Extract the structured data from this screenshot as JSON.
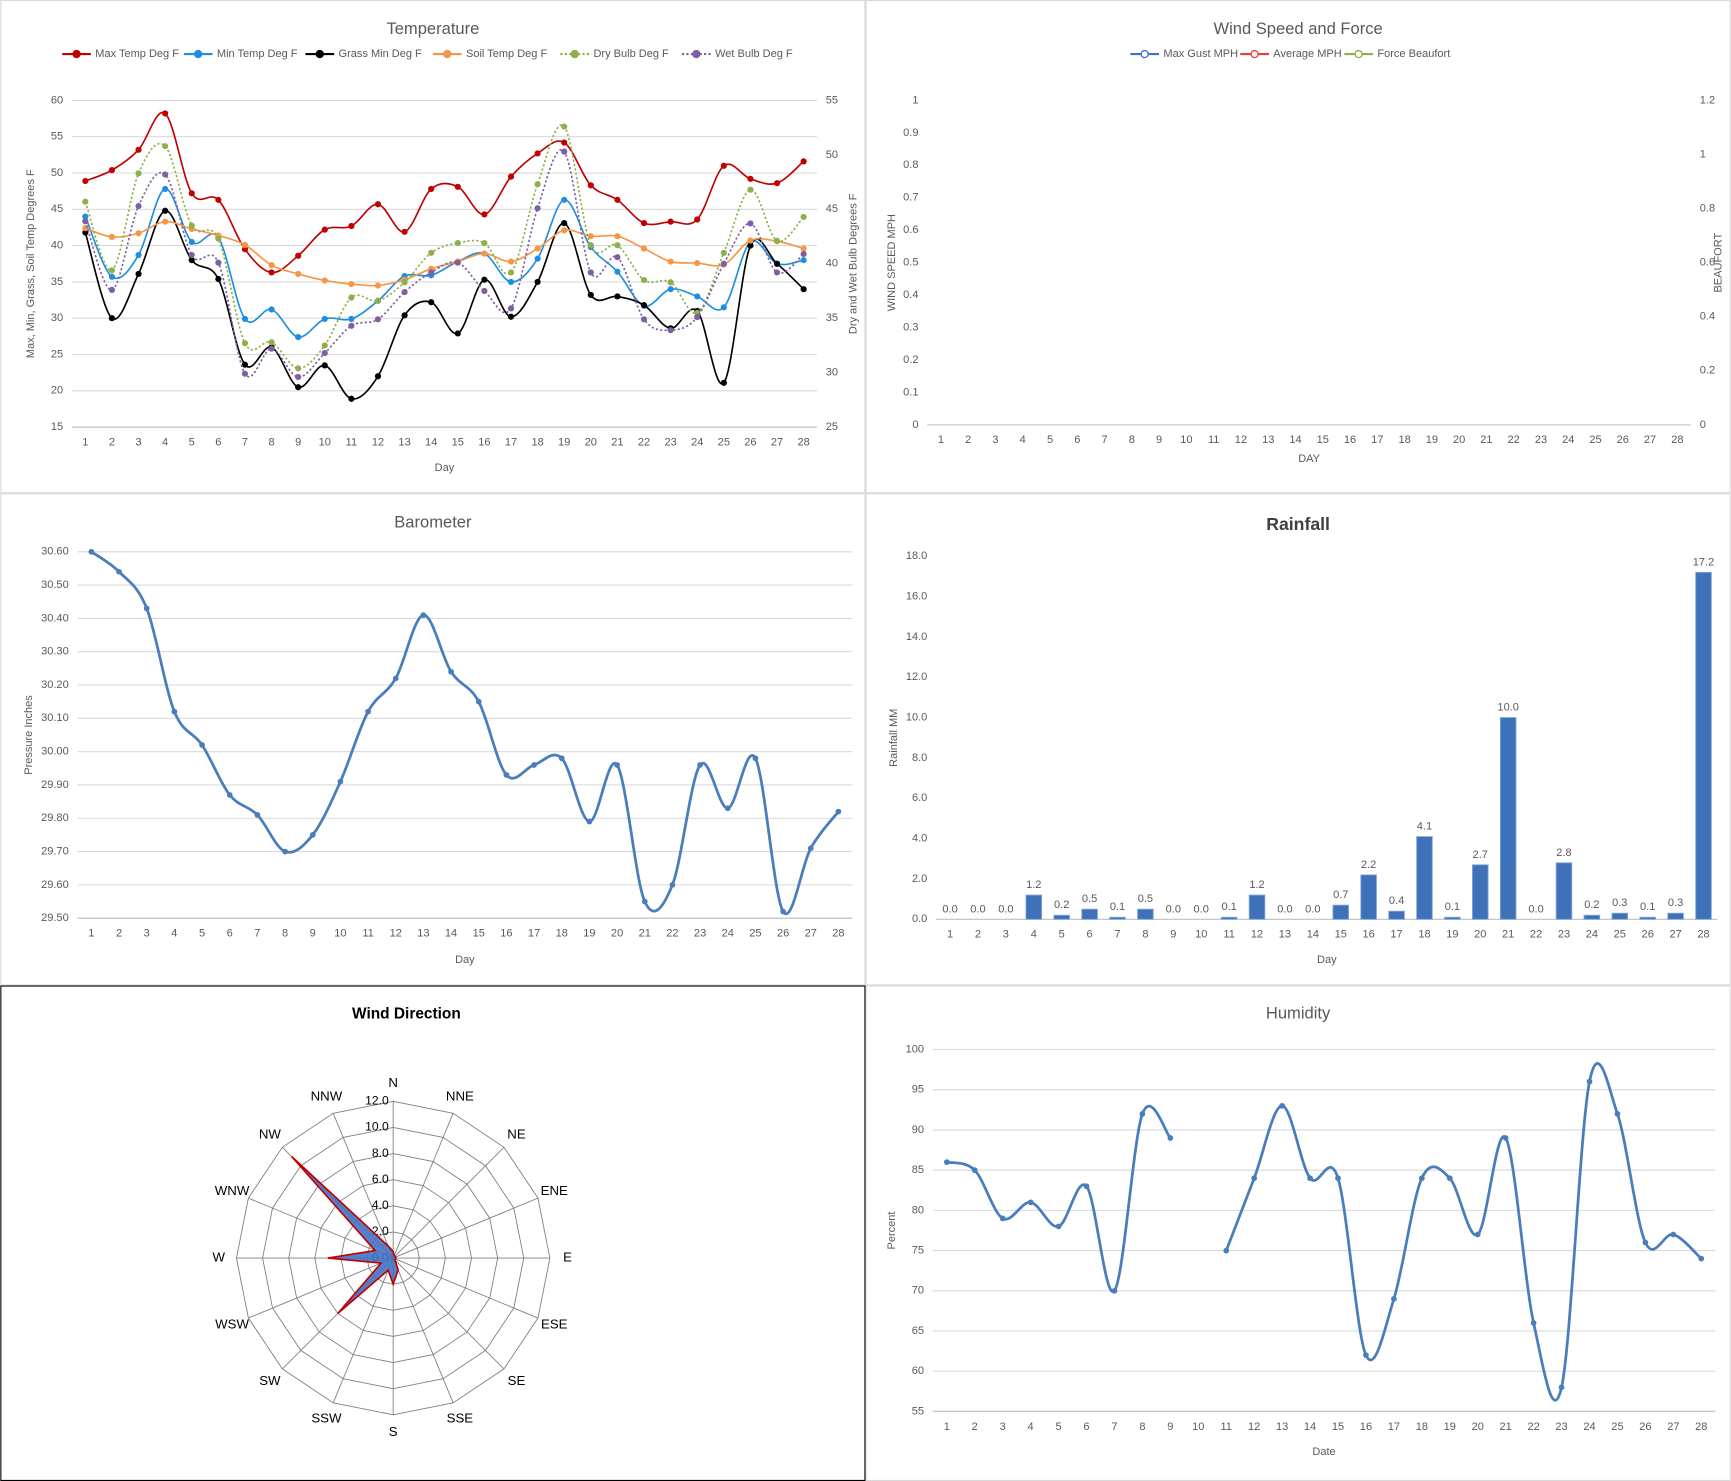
{
  "chart_data": [
    {
      "type": "line",
      "title": "Temperature",
      "smooth": true,
      "markers": true,
      "grid": true,
      "x_label": "Day",
      "y_label": "Max, Min, Grass, Soil Temp Degrees F",
      "y2_label": "Dry and Wet Bulb Degrees F",
      "categories": [
        "1",
        "2",
        "3",
        "4",
        "5",
        "6",
        "7",
        "8",
        "9",
        "10",
        "11",
        "12",
        "13",
        "14",
        "15",
        "16",
        "17",
        "18",
        "19",
        "20",
        "21",
        "22",
        "23",
        "24",
        "25",
        "26",
        "27",
        "28"
      ],
      "ylim": [
        15,
        60
      ],
      "yticks": [
        15,
        20,
        25,
        30,
        35,
        40,
        45,
        50,
        55,
        60
      ],
      "y2lim": [
        25,
        55
      ],
      "y2ticks": [
        25,
        30,
        35,
        40,
        45,
        50,
        55
      ],
      "series": [
        {
          "name": "Max Temp Deg F",
          "color": "#c00000",
          "values": [
            48.9,
            50.4,
            53.2,
            58.2,
            47.2,
            46.3,
            39.5,
            36.3,
            38.6,
            42.2,
            42.7,
            45.7,
            41.9,
            47.8,
            48.1,
            44.3,
            49.5,
            52.7,
            54.2,
            48.3,
            46.3,
            43.1,
            43.3,
            43.6,
            51.0,
            49.2,
            48.6,
            51.6
          ]
        },
        {
          "name": "Min Temp Deg F",
          "color": "#1f8ee0",
          "values": [
            44.0,
            35.7,
            38.7,
            47.8,
            40.5,
            41.1,
            29.9,
            31.2,
            27.4,
            29.9,
            29.9,
            32.4,
            35.8,
            35.9,
            37.8,
            38.9,
            35.0,
            38.2,
            46.3,
            39.8,
            36.4,
            31.7,
            34.0,
            33.0,
            31.5,
            40.5,
            37.5,
            38.0
          ]
        },
        {
          "name": "Grass Min Deg F",
          "color": "#000000",
          "values": [
            41.8,
            30.0,
            36.1,
            44.8,
            38.0,
            35.4,
            23.6,
            26.0,
            20.5,
            23.5,
            18.9,
            22.0,
            30.4,
            32.2,
            27.9,
            35.3,
            30.2,
            35.0,
            43.1,
            33.2,
            33.0,
            31.8,
            28.6,
            31.0,
            21.1,
            40.0,
            37.5,
            34.0
          ]
        },
        {
          "name": "Soil Temp Deg F",
          "color": "#f79646",
          "values": [
            42.4,
            41.2,
            41.7,
            43.3,
            42.3,
            41.4,
            40.1,
            37.3,
            36.1,
            35.2,
            34.7,
            34.5,
            35.3,
            36.8,
            37.8,
            38.9,
            37.8,
            39.6,
            42.1,
            41.3,
            41.3,
            39.6,
            37.8,
            37.6,
            37.4,
            40.7,
            40.6,
            39.6
          ]
        },
        {
          "name": "Dry Bulb Deg F",
          "color": "#8db04a",
          "axis": "y2",
          "line_style": "dotted",
          "values": [
            45.7,
            39.4,
            48.3,
            50.8,
            43.5,
            42.3,
            32.7,
            32.8,
            30.4,
            32.5,
            36.9,
            36.6,
            38.3,
            41.0,
            41.9,
            41.9,
            39.2,
            47.3,
            52.6,
            41.7,
            41.7,
            38.5,
            38.3,
            35.5,
            41.0,
            46.8,
            42.1,
            44.3
          ]
        },
        {
          "name": "Wet Bulb Deg F",
          "color": "#7f5fa0",
          "axis": "y2",
          "line_style": "dotted",
          "values": [
            43.9,
            37.6,
            45.3,
            48.2,
            40.8,
            40.1,
            29.9,
            32.2,
            29.6,
            31.8,
            34.3,
            34.9,
            37.4,
            39.2,
            40.1,
            37.5,
            35.9,
            45.1,
            50.3,
            39.2,
            40.6,
            34.9,
            33.9,
            35.1,
            40.0,
            43.7,
            39.2,
            40.9
          ]
        }
      ]
    },
    {
      "type": "line",
      "title": "Wind Speed and Force",
      "smooth": true,
      "markers": true,
      "grid": false,
      "marker_style": "hollow",
      "x_label": "DAY",
      "y_label": "WIND SPEED MPH",
      "y2_label": "BEAUFORT",
      "categories": [
        "1",
        "2",
        "3",
        "4",
        "5",
        "6",
        "7",
        "8",
        "9",
        "10",
        "11",
        "12",
        "13",
        "14",
        "15",
        "16",
        "17",
        "18",
        "19",
        "20",
        "21",
        "22",
        "23",
        "24",
        "25",
        "26",
        "27",
        "28"
      ],
      "ylim": [
        0,
        1
      ],
      "yticks": [
        0,
        0.1,
        0.2,
        0.3,
        0.4,
        0.5,
        0.6,
        0.7,
        0.8,
        0.9,
        1
      ],
      "y2lim": [
        0,
        1.2
      ],
      "y2ticks": [
        0,
        0.2,
        0.4,
        0.6,
        0.8,
        1,
        1.2
      ],
      "series": [
        {
          "name": "Max Gust MPH",
          "color": "#4472c4",
          "values": [
            null,
            null,
            null,
            null,
            null,
            null,
            null,
            null,
            null,
            null,
            null,
            null,
            null,
            null,
            null,
            null,
            null,
            null,
            null,
            null,
            null,
            null,
            null,
            null,
            null,
            null,
            null,
            null
          ]
        },
        {
          "name": "Average MPH",
          "color": "#e0403a",
          "values": [
            null,
            null,
            null,
            null,
            null,
            null,
            null,
            null,
            null,
            null,
            null,
            null,
            null,
            null,
            null,
            null,
            null,
            null,
            null,
            null,
            null,
            null,
            null,
            null,
            null,
            null,
            null,
            null
          ]
        },
        {
          "name": "Force Beaufort",
          "color": "#8db04a",
          "axis": "y2",
          "values": [
            null,
            null,
            null,
            null,
            null,
            null,
            null,
            null,
            null,
            null,
            null,
            null,
            null,
            null,
            null,
            null,
            null,
            null,
            null,
            null,
            null,
            null,
            null,
            null,
            null,
            null,
            null,
            null
          ]
        }
      ]
    },
    {
      "type": "line",
      "title": "Barometer",
      "smooth": true,
      "markers": true,
      "grid": true,
      "x_label": "Day",
      "y_label": "Pressure Inches",
      "categories": [
        "1",
        "2",
        "3",
        "4",
        "5",
        "6",
        "7",
        "8",
        "9",
        "10",
        "11",
        "12",
        "13",
        "14",
        "15",
        "16",
        "17",
        "18",
        "19",
        "20",
        "21",
        "22",
        "23",
        "24",
        "25",
        "26",
        "27",
        "28"
      ],
      "ylim": [
        29.5,
        30.6
      ],
      "yticks": [
        {
          "value": 29.5,
          "label": "29.50"
        },
        {
          "value": 29.6,
          "label": "29.60"
        },
        {
          "value": 29.7,
          "label": "29.70"
        },
        {
          "value": 29.8,
          "label": "29.80"
        },
        {
          "value": 29.9,
          "label": "29.90"
        },
        {
          "value": 30.0,
          "label": "30.00"
        },
        {
          "value": 30.1,
          "label": "30.10"
        },
        {
          "value": 30.2,
          "label": "30.20"
        },
        {
          "value": 30.3,
          "label": "30.30"
        },
        {
          "value": 30.4,
          "label": "30.40"
        },
        {
          "value": 30.5,
          "label": "30.50"
        },
        {
          "value": 30.6,
          "label": "30.60"
        }
      ],
      "series": [
        {
          "name": "Pressure",
          "color": "#4a7ebb",
          "values": [
            30.6,
            30.54,
            30.43,
            30.12,
            30.02,
            29.87,
            29.81,
            29.7,
            29.75,
            29.91,
            30.12,
            30.22,
            30.41,
            30.24,
            30.15,
            29.93,
            29.96,
            29.98,
            29.79,
            29.96,
            29.55,
            29.6,
            29.96,
            29.83,
            29.98,
            29.52,
            29.71,
            29.82
          ]
        }
      ]
    },
    {
      "type": "bar",
      "title": "Rainfall",
      "grid": false,
      "x_label": "Day",
      "y_label": "Rainfall MM",
      "color": "#3e71b8",
      "categories": [
        "1",
        "2",
        "3",
        "4",
        "5",
        "6",
        "7",
        "8",
        "9",
        "10",
        "11",
        "12",
        "13",
        "14",
        "15",
        "16",
        "17",
        "18",
        "19",
        "20",
        "21",
        "22",
        "23",
        "24",
        "25",
        "26",
        "27",
        "28"
      ],
      "ylim": [
        0,
        18
      ],
      "yticks": [
        {
          "value": 0,
          "label": "0.0"
        },
        {
          "value": 2,
          "label": "2.0"
        },
        {
          "value": 4,
          "label": "4.0"
        },
        {
          "value": 6,
          "label": "6.0"
        },
        {
          "value": 8,
          "label": "8.0"
        },
        {
          "value": 10,
          "label": "10.0"
        },
        {
          "value": 12,
          "label": "12.0"
        },
        {
          "value": 14,
          "label": "14.0"
        },
        {
          "value": 16,
          "label": "16.0"
        },
        {
          "value": 18,
          "label": "18.0"
        }
      ],
      "values": [
        0,
        0,
        0,
        1.2,
        0.2,
        0.5,
        0.1,
        0.5,
        0,
        0,
        0.1,
        1.2,
        0,
        0,
        0.7,
        2.2,
        0.4,
        4.1,
        0.1,
        2.7,
        10.0,
        0,
        2.8,
        0.2,
        0.3,
        0.1,
        0.3,
        17.2
      ],
      "value_labels": [
        "0.0",
        "0.0",
        "0.0",
        "1.2",
        "0.2",
        "0.5",
        "0.1",
        "0.5",
        "0.0",
        "0.0",
        "0.1",
        "1.2",
        "0.0",
        "0.0",
        "0.7",
        "2.2",
        "0.4",
        "4.1",
        "0.1",
        "2.7",
        "10.0",
        "0.0",
        "2.8",
        "0.2",
        "0.3",
        "0.1",
        "0.3",
        "17.2"
      ]
    },
    {
      "type": "radar",
      "title": "Wind Direction",
      "color": "#4472c4",
      "line_color": "#c00000",
      "categories": [
        "N",
        "NNE",
        "NE",
        "ENE",
        "E",
        "ESE",
        "SE",
        "SSE",
        "S",
        "SSW",
        "SW",
        "WSW",
        "W",
        "WNW",
        "NW",
        "NNW"
      ],
      "values": [
        0.5,
        0.2,
        0.2,
        0.2,
        0.2,
        0.2,
        0.2,
        1.0,
        2.0,
        1.0,
        6.0,
        1.0,
        5.0,
        1.5,
        11.0,
        1.0
      ],
      "rlim": [
        0,
        12
      ],
      "rticks": [
        {
          "value": 0,
          "label": "0.0"
        },
        {
          "value": 2,
          "label": "2.0"
        },
        {
          "value": 4,
          "label": "4.0"
        },
        {
          "value": 6,
          "label": "6.0"
        },
        {
          "value": 8,
          "label": "8.0"
        },
        {
          "value": 10,
          "label": "10.0"
        },
        {
          "value": 12,
          "label": "12.0"
        }
      ]
    },
    {
      "type": "line",
      "title": "Humidity",
      "smooth": true,
      "markers": true,
      "grid": true,
      "x_label": "Date",
      "y_label": "Percent",
      "categories": [
        "1",
        "2",
        "3",
        "4",
        "5",
        "6",
        "7",
        "8",
        "9",
        "10",
        "11",
        "12",
        "13",
        "14",
        "15",
        "16",
        "17",
        "18",
        "19",
        "20",
        "21",
        "22",
        "23",
        "24",
        "25",
        "26",
        "27",
        "28"
      ],
      "ylim": [
        55,
        100
      ],
      "yticks": [
        55,
        60,
        65,
        70,
        75,
        80,
        85,
        90,
        95,
        100
      ],
      "series": [
        {
          "name": "Humidity",
          "color": "#4a7ebb",
          "values": [
            86,
            85,
            79,
            81,
            78,
            83,
            70,
            92,
            89,
            null,
            75,
            84,
            93,
            84,
            84,
            62,
            69,
            84,
            84,
            77,
            89,
            66,
            58,
            96,
            92,
            76,
            77,
            74
          ]
        }
      ]
    }
  ]
}
